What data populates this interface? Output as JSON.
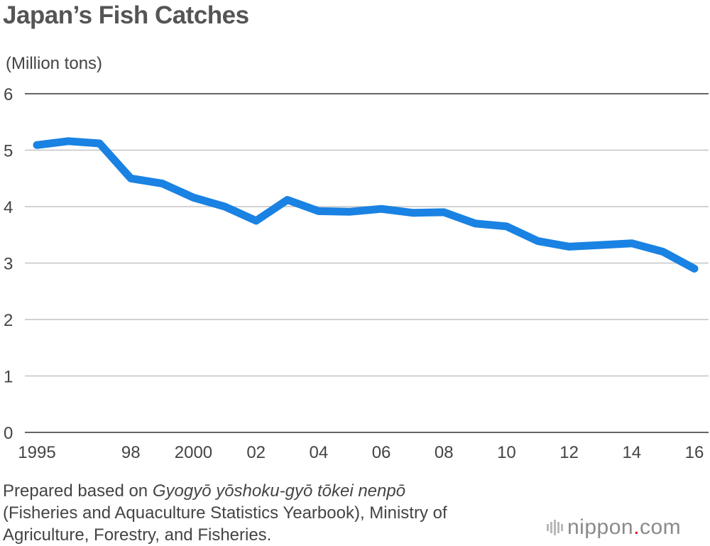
{
  "chart_data": {
    "type": "line",
    "title": "Japan’s Fish Catches",
    "ylabel": "(Million tons)",
    "ylim": [
      0,
      6
    ],
    "yticks": [
      "0",
      "1",
      "2",
      "3",
      "4",
      "5",
      "6"
    ],
    "xlim": [
      1995,
      2016
    ],
    "xticks": [
      {
        "x": 1995,
        "label": "1995"
      },
      {
        "x": 1998,
        "label": "98"
      },
      {
        "x": 2000,
        "label": "2000"
      },
      {
        "x": 2002,
        "label": "02"
      },
      {
        "x": 2004,
        "label": "04"
      },
      {
        "x": 2006,
        "label": "06"
      },
      {
        "x": 2008,
        "label": "08"
      },
      {
        "x": 2010,
        "label": "10"
      },
      {
        "x": 2012,
        "label": "12"
      },
      {
        "x": 2014,
        "label": "14"
      },
      {
        "x": 2016,
        "label": "16"
      }
    ],
    "series": [
      {
        "color": "#1a82e2",
        "x": [
          1995,
          1996,
          1997,
          1998,
          1999,
          2000,
          2001,
          2002,
          2003,
          2004,
          2005,
          2006,
          2007,
          2008,
          2009,
          2010,
          2011,
          2012,
          2013,
          2014,
          2015,
          2016
        ],
        "y": [
          5.09,
          5.16,
          5.12,
          4.5,
          4.41,
          4.16,
          4.0,
          3.75,
          4.12,
          3.92,
          3.91,
          3.96,
          3.89,
          3.9,
          3.7,
          3.65,
          3.39,
          3.29,
          3.32,
          3.35,
          3.2,
          2.9
        ]
      }
    ],
    "grid": true,
    "gridColor": "#c4c4c4",
    "axisColor": "#333333"
  },
  "source": {
    "prefix": "Prepared based on ",
    "title_italic": "Gyogyō yōshoku-gyō tōkei nenpō",
    "rest": "(Fisheries and Aquaculture Statistics Yearbook), Ministry of Agriculture, Forestry, and Fisheries."
  },
  "logo": {
    "name": "nippon",
    "dot": ".",
    "tld": "com",
    "dotColor": "#e60012"
  }
}
